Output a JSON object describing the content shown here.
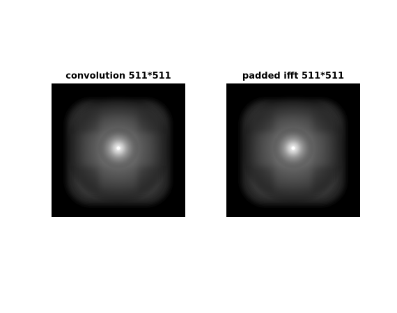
{
  "figure": {
    "panels": [
      {
        "title": "convolution 511*511"
      },
      {
        "title": "padded ifft 511*511"
      }
    ]
  },
  "colors": {
    "background": "#ffffff",
    "image_base": "#000000",
    "highlight": "#ffffff"
  }
}
